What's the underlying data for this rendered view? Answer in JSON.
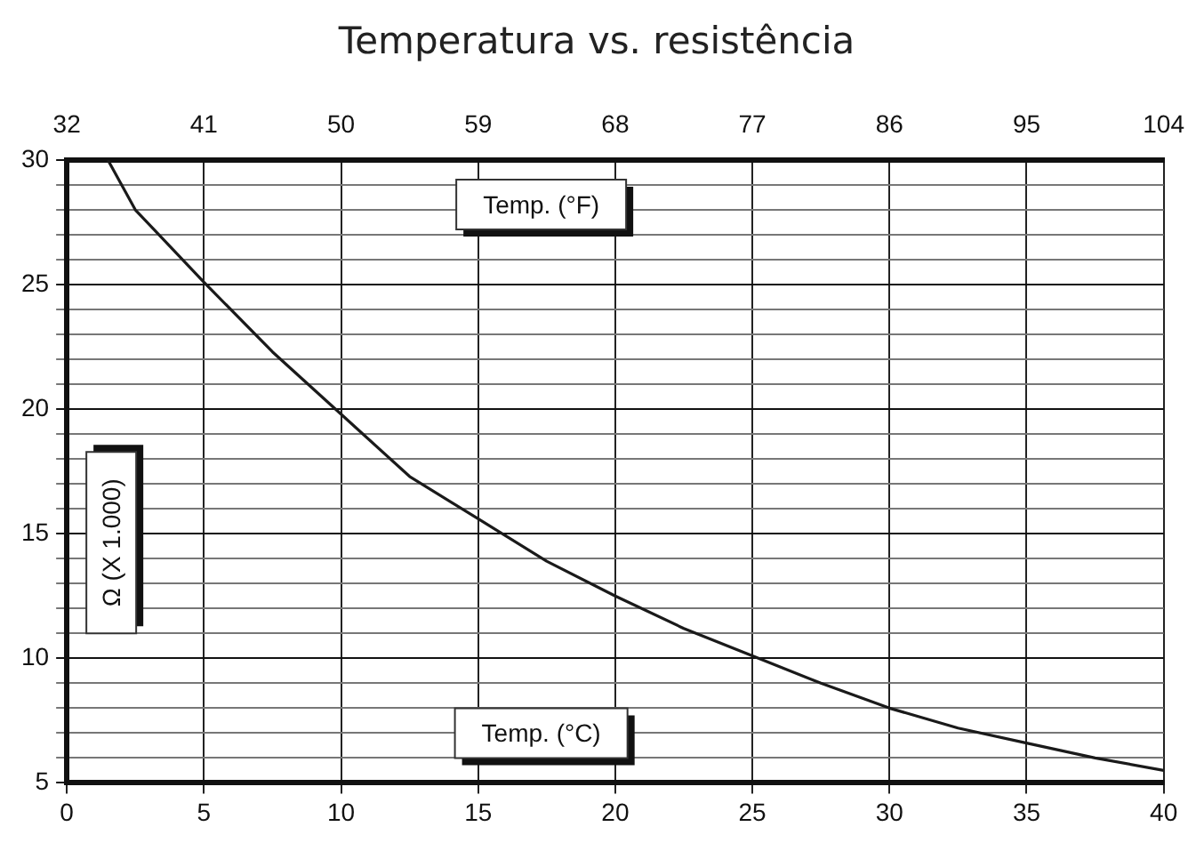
{
  "chart_data": {
    "type": "line",
    "title": "Temperatura vs. resistência",
    "xlabel": "Temp. (°C)",
    "x2label": "Temp. (°F)",
    "ylabel": "Ω (X 1.000)",
    "series": [
      {
        "color": "#1a1a1a",
        "x": [
          1.5,
          2.5,
          5,
          7.5,
          10,
          12.5,
          15,
          17.5,
          20,
          22.5,
          25,
          27.5,
          30,
          32.5,
          35,
          37.5,
          40
        ],
        "values": [
          30,
          28,
          25.1,
          22.3,
          19.8,
          17.3,
          15.6,
          13.9,
          12.5,
          11.2,
          10.1,
          9,
          8,
          7.2,
          6.6,
          6,
          5.5
        ]
      }
    ],
    "xlim": [
      0,
      40
    ],
    "xticks": [
      0,
      5,
      10,
      15,
      20,
      25,
      30,
      35,
      40
    ],
    "x2lim": [
      32,
      104
    ],
    "x2ticks": [
      32,
      41,
      50,
      59,
      68,
      77,
      86,
      95,
      104
    ],
    "ylim": [
      5,
      30
    ],
    "yticks": [
      5,
      {
        "value": 6,
        "label": null
      },
      {
        "value": 7,
        "label": null
      },
      {
        "value": 8,
        "label": null
      },
      {
        "value": 9,
        "label": null
      },
      10,
      {
        "value": 11,
        "label": null
      },
      {
        "value": 12,
        "label": null
      },
      {
        "value": 13,
        "label": null
      },
      {
        "value": 14,
        "label": null
      },
      15,
      {
        "value": 16,
        "label": null
      },
      {
        "value": 17,
        "label": null
      },
      {
        "value": 18,
        "label": null
      },
      {
        "value": 19,
        "label": null
      },
      20,
      {
        "value": 21,
        "label": null
      },
      {
        "value": 22,
        "label": null
      },
      {
        "value": 23,
        "label": null
      },
      {
        "value": 24,
        "label": null
      },
      25,
      {
        "value": 26,
        "label": null
      },
      {
        "value": 27,
        "label": null
      },
      {
        "value": 28,
        "label": null
      },
      {
        "value": 29,
        "label": null
      },
      30
    ],
    "grid": true,
    "legend": false,
    "marker": "none",
    "line_style": "solid"
  }
}
